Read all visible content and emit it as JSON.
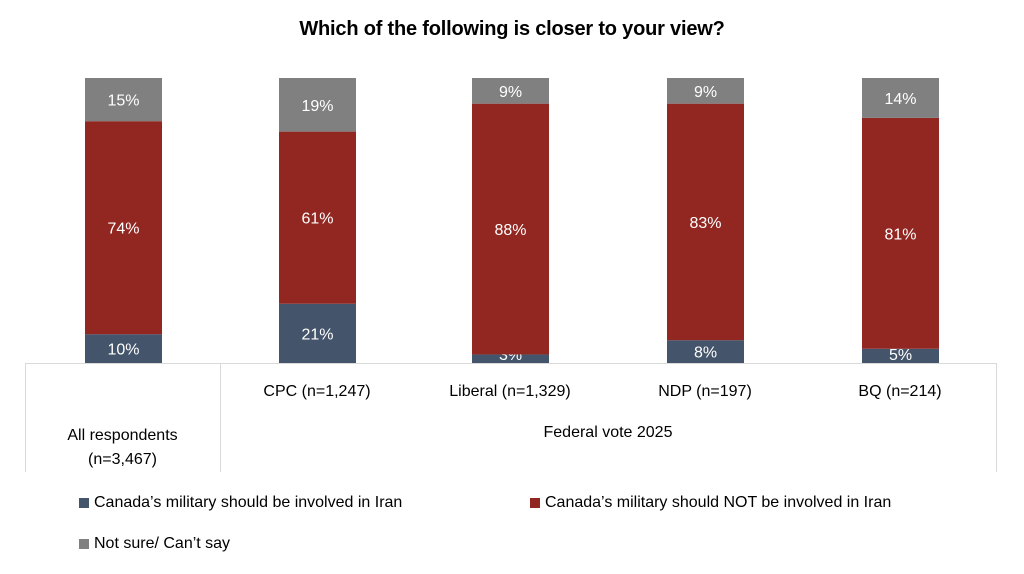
{
  "chart_data": {
    "type": "bar",
    "stacked": true,
    "title": "Which of the following is closer to your view?",
    "xlabel": "",
    "ylabel": "",
    "ylim": [
      0,
      100
    ],
    "grid": false,
    "categories": [
      "All respondents (n=3,467)",
      "CPC (n=1,247)",
      "Liberal (n=1,329)",
      "NDP (n=197)",
      "BQ (n=214)"
    ],
    "category_groups": [
      {
        "label": "All respondents (n=3,467)",
        "members": [
          "All respondents (n=3,467)"
        ]
      },
      {
        "label": "Federal vote 2025",
        "members": [
          "CPC (n=1,247)",
          "Liberal (n=1,329)",
          "NDP (n=197)",
          "BQ (n=214)"
        ]
      }
    ],
    "series": [
      {
        "name": "Canada’s military should be involved in Iran",
        "color": "#44546a",
        "values": [
          10,
          21,
          3,
          8,
          5
        ]
      },
      {
        "name": "Canada’s military should NOT be involved in Iran",
        "color": "#922721",
        "values": [
          74,
          61,
          88,
          83,
          81
        ]
      },
      {
        "name": "Not sure/ Can’t say",
        "color": "#808080",
        "values": [
          15,
          19,
          9,
          9,
          14
        ]
      }
    ],
    "legend_position": "bottom"
  },
  "labels": {
    "all_line1": "All respondents",
    "all_line2": "(n=3,467)",
    "cpc": "CPC (n=1,247)",
    "liberal": "Liberal (n=1,329)",
    "ndp": "NDP (n=197)",
    "bq": "BQ (n=214)",
    "group": "Federal vote 2025"
  }
}
